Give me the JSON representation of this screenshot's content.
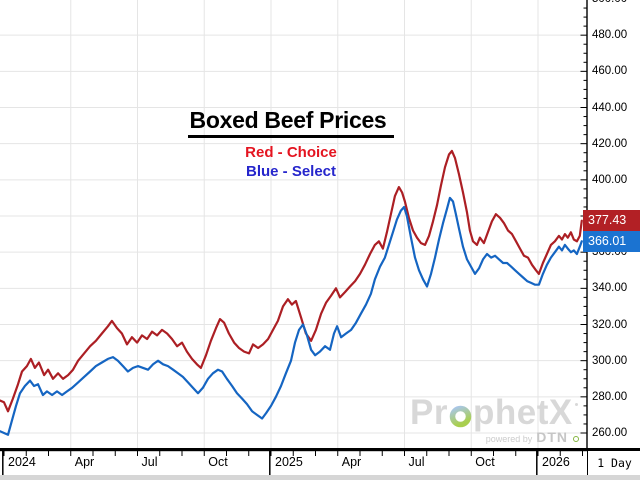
{
  "header": {
    "title": "Boxed Beef Prices",
    "legend": [
      {
        "label": "Red - Choice",
        "color": "#e41420"
      },
      {
        "label": "Blue - Select",
        "color": "#2626cc"
      }
    ]
  },
  "price_tags": [
    {
      "value": "377.43",
      "bg": "#b22025"
    },
    {
      "value": "366.01",
      "bg": "#1b73d1"
    }
  ],
  "timeframe": {
    "label": "1 Day"
  },
  "watermark": {
    "brand": "ProphetX",
    "brand_pre": "Pr",
    "brand_post": "phetX",
    "powered_by": "powered by",
    "vendor": "DTN"
  },
  "chart_data": {
    "type": "line",
    "title": "Boxed Beef Prices",
    "grid": true,
    "legend_position": "top-center",
    "x_axis": {
      "unit": "months since Jan 2024",
      "range": [
        -0.2,
        26.2
      ],
      "minor_tick_every": 1,
      "ticks": [
        {
          "t": 0,
          "label": "2024",
          "year_start": true
        },
        {
          "t": 3,
          "label": "Apr"
        },
        {
          "t": 6,
          "label": "Jul"
        },
        {
          "t": 9,
          "label": "Oct"
        },
        {
          "t": 12,
          "label": "2025",
          "year_start": true
        },
        {
          "t": 15,
          "label": "Apr"
        },
        {
          "t": 18,
          "label": "Jul"
        },
        {
          "t": 21,
          "label": "Oct"
        },
        {
          "t": 24,
          "label": "2026",
          "year_start": true
        }
      ]
    },
    "y_axis": {
      "min": 260,
      "max": 500,
      "major_step": 20,
      "minor_step": 5,
      "decimals": 2
    },
    "series": [
      {
        "name": "Choice",
        "color": "#ac1f24",
        "last_value": 377.43,
        "points": [
          [
            -0.18,
            278
          ],
          [
            0,
            277
          ],
          [
            0.18,
            272
          ],
          [
            0.4,
            279
          ],
          [
            0.63,
            287
          ],
          [
            0.81,
            294
          ],
          [
            1.03,
            297
          ],
          [
            1.21,
            301
          ],
          [
            1.39,
            296
          ],
          [
            1.57,
            299
          ],
          [
            1.8,
            292
          ],
          [
            1.98,
            295
          ],
          [
            2.2,
            290
          ],
          [
            2.43,
            293
          ],
          [
            2.65,
            290
          ],
          [
            2.88,
            292
          ],
          [
            3.1,
            295
          ],
          [
            3.33,
            300
          ],
          [
            3.6,
            304
          ],
          [
            3.87,
            308
          ],
          [
            4.13,
            311
          ],
          [
            4.4,
            315
          ],
          [
            4.67,
            319
          ],
          [
            4.85,
            322
          ],
          [
            5.08,
            318
          ],
          [
            5.3,
            315
          ],
          [
            5.53,
            309
          ],
          [
            5.75,
            313
          ],
          [
            5.98,
            310
          ],
          [
            6.2,
            314
          ],
          [
            6.43,
            312
          ],
          [
            6.65,
            316
          ],
          [
            6.88,
            314
          ],
          [
            7.1,
            317
          ],
          [
            7.33,
            315
          ],
          [
            7.55,
            312
          ],
          [
            7.78,
            308
          ],
          [
            8,
            310
          ],
          [
            8.22,
            305
          ],
          [
            8.45,
            301
          ],
          [
            8.67,
            298
          ],
          [
            8.85,
            296
          ],
          [
            9.08,
            303
          ],
          [
            9.3,
            311
          ],
          [
            9.53,
            318
          ],
          [
            9.71,
            323
          ],
          [
            9.89,
            321
          ],
          [
            10.11,
            315
          ],
          [
            10.34,
            310
          ],
          [
            10.56,
            307
          ],
          [
            10.79,
            305
          ],
          [
            11.01,
            304
          ],
          [
            11.19,
            309
          ],
          [
            11.42,
            307
          ],
          [
            11.64,
            309
          ],
          [
            11.87,
            312
          ],
          [
            12.09,
            317
          ],
          [
            12.31,
            322
          ],
          [
            12.54,
            330
          ],
          [
            12.76,
            334
          ],
          [
            12.94,
            331
          ],
          [
            13.12,
            333
          ],
          [
            13.35,
            324
          ],
          [
            13.57,
            315
          ],
          [
            13.8,
            311
          ],
          [
            14.02,
            317
          ],
          [
            14.25,
            326
          ],
          [
            14.47,
            332
          ],
          [
            14.7,
            336
          ],
          [
            14.92,
            340
          ],
          [
            15.1,
            335
          ],
          [
            15.33,
            338
          ],
          [
            15.55,
            341
          ],
          [
            15.78,
            344
          ],
          [
            16,
            348
          ],
          [
            16.22,
            353
          ],
          [
            16.45,
            359
          ],
          [
            16.67,
            364
          ],
          [
            16.85,
            366
          ],
          [
            17.03,
            362
          ],
          [
            17.21,
            371
          ],
          [
            17.39,
            381
          ],
          [
            17.57,
            391
          ],
          [
            17.75,
            396
          ],
          [
            17.89,
            393
          ],
          [
            18.02,
            388
          ],
          [
            18.2,
            379
          ],
          [
            18.38,
            372
          ],
          [
            18.56,
            368
          ],
          [
            18.74,
            365
          ],
          [
            18.92,
            364
          ],
          [
            19.1,
            369
          ],
          [
            19.28,
            377
          ],
          [
            19.46,
            386
          ],
          [
            19.64,
            397
          ],
          [
            19.82,
            407
          ],
          [
            20,
            414
          ],
          [
            20.13,
            416
          ],
          [
            20.27,
            412
          ],
          [
            20.45,
            403
          ],
          [
            20.63,
            393
          ],
          [
            20.81,
            382
          ],
          [
            20.94,
            372
          ],
          [
            21.08,
            366
          ],
          [
            21.26,
            364
          ],
          [
            21.39,
            368
          ],
          [
            21.57,
            365
          ],
          [
            21.75,
            371
          ],
          [
            21.93,
            377
          ],
          [
            22.11,
            381
          ],
          [
            22.29,
            379
          ],
          [
            22.47,
            376
          ],
          [
            22.65,
            372
          ],
          [
            22.83,
            370
          ],
          [
            23.01,
            366
          ],
          [
            23.19,
            362
          ],
          [
            23.37,
            358
          ],
          [
            23.55,
            357
          ],
          [
            23.73,
            353
          ],
          [
            23.91,
            350
          ],
          [
            24.04,
            348
          ],
          [
            24.22,
            354
          ],
          [
            24.4,
            359
          ],
          [
            24.58,
            364
          ],
          [
            24.76,
            366
          ],
          [
            24.94,
            369
          ],
          [
            25.08,
            367
          ],
          [
            25.21,
            370
          ],
          [
            25.34,
            368
          ],
          [
            25.48,
            371
          ],
          [
            25.61,
            367
          ],
          [
            25.75,
            366
          ],
          [
            25.88,
            369
          ],
          [
            25.97,
            377.43
          ]
        ]
      },
      {
        "name": "Select",
        "color": "#1565c2",
        "last_value": 366.01,
        "points": [
          [
            -0.18,
            261
          ],
          [
            0,
            260
          ],
          [
            0.18,
            259
          ],
          [
            0.36,
            267
          ],
          [
            0.54,
            275
          ],
          [
            0.72,
            282
          ],
          [
            0.94,
            286
          ],
          [
            1.17,
            289
          ],
          [
            1.35,
            286
          ],
          [
            1.53,
            287
          ],
          [
            1.75,
            281
          ],
          [
            1.93,
            283
          ],
          [
            2.16,
            281
          ],
          [
            2.38,
            283
          ],
          [
            2.61,
            281
          ],
          [
            2.83,
            283
          ],
          [
            3.06,
            285
          ],
          [
            3.33,
            288
          ],
          [
            3.6,
            291
          ],
          [
            3.87,
            294
          ],
          [
            4.13,
            297
          ],
          [
            4.4,
            299
          ],
          [
            4.67,
            301
          ],
          [
            4.9,
            302
          ],
          [
            5.12,
            300
          ],
          [
            5.35,
            297
          ],
          [
            5.57,
            294
          ],
          [
            5.8,
            296
          ],
          [
            6.02,
            297
          ],
          [
            6.25,
            296
          ],
          [
            6.47,
            295
          ],
          [
            6.7,
            298
          ],
          [
            6.92,
            300
          ],
          [
            7.15,
            298
          ],
          [
            7.37,
            297
          ],
          [
            7.6,
            295
          ],
          [
            7.82,
            293
          ],
          [
            8.04,
            291
          ],
          [
            8.27,
            288
          ],
          [
            8.49,
            285
          ],
          [
            8.72,
            282
          ],
          [
            8.94,
            285
          ],
          [
            9.17,
            290
          ],
          [
            9.39,
            293
          ],
          [
            9.62,
            295
          ],
          [
            9.8,
            294
          ],
          [
            10.02,
            290
          ],
          [
            10.25,
            286
          ],
          [
            10.47,
            282
          ],
          [
            10.7,
            279
          ],
          [
            10.92,
            276
          ],
          [
            11.15,
            272
          ],
          [
            11.37,
            270
          ],
          [
            11.6,
            268
          ],
          [
            11.78,
            271
          ],
          [
            12,
            275
          ],
          [
            12.22,
            280
          ],
          [
            12.45,
            286
          ],
          [
            12.67,
            293
          ],
          [
            12.9,
            300
          ],
          [
            13.08,
            310
          ],
          [
            13.26,
            317
          ],
          [
            13.44,
            320
          ],
          [
            13.62,
            314
          ],
          [
            13.8,
            306
          ],
          [
            13.98,
            303
          ],
          [
            14.2,
            305
          ],
          [
            14.43,
            308
          ],
          [
            14.65,
            306
          ],
          [
            14.83,
            315
          ],
          [
            14.97,
            319
          ],
          [
            15.15,
            313
          ],
          [
            15.37,
            315
          ],
          [
            15.6,
            317
          ],
          [
            15.82,
            321
          ],
          [
            16.04,
            326
          ],
          [
            16.27,
            331
          ],
          [
            16.49,
            337
          ],
          [
            16.67,
            345
          ],
          [
            16.9,
            352
          ],
          [
            17.12,
            357
          ],
          [
            17.3,
            364
          ],
          [
            17.48,
            371
          ],
          [
            17.66,
            378
          ],
          [
            17.84,
            383
          ],
          [
            17.98,
            385
          ],
          [
            18.11,
            380
          ],
          [
            18.29,
            368
          ],
          [
            18.47,
            357
          ],
          [
            18.65,
            350
          ],
          [
            18.83,
            345
          ],
          [
            19.01,
            341
          ],
          [
            19.19,
            348
          ],
          [
            19.37,
            357
          ],
          [
            19.55,
            367
          ],
          [
            19.73,
            376
          ],
          [
            19.91,
            384
          ],
          [
            20.04,
            390
          ],
          [
            20.18,
            388
          ],
          [
            20.31,
            381
          ],
          [
            20.45,
            373
          ],
          [
            20.63,
            363
          ],
          [
            20.81,
            356
          ],
          [
            20.99,
            352
          ],
          [
            21.17,
            348
          ],
          [
            21.35,
            351
          ],
          [
            21.53,
            356
          ],
          [
            21.71,
            359
          ],
          [
            21.89,
            357
          ],
          [
            22.07,
            358
          ],
          [
            22.25,
            356
          ],
          [
            22.43,
            354
          ],
          [
            22.61,
            354
          ],
          [
            22.79,
            352
          ],
          [
            22.97,
            350
          ],
          [
            23.15,
            348
          ],
          [
            23.33,
            346
          ],
          [
            23.51,
            344
          ],
          [
            23.69,
            343
          ],
          [
            23.87,
            342
          ],
          [
            24.04,
            342
          ],
          [
            24.22,
            348
          ],
          [
            24.4,
            353
          ],
          [
            24.58,
            357
          ],
          [
            24.76,
            360
          ],
          [
            24.94,
            363
          ],
          [
            25.08,
            361
          ],
          [
            25.21,
            364
          ],
          [
            25.34,
            362
          ],
          [
            25.48,
            360
          ],
          [
            25.61,
            361
          ],
          [
            25.75,
            359
          ],
          [
            25.88,
            363
          ],
          [
            25.97,
            366.01
          ]
        ]
      }
    ]
  }
}
